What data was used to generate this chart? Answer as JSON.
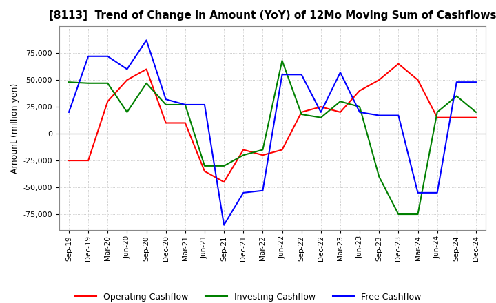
{
  "title": "[8113]  Trend of Change in Amount (YoY) of 12Mo Moving Sum of Cashflows",
  "ylabel": "Amount (million yen)",
  "x_labels": [
    "Sep-19",
    "Dec-19",
    "Mar-20",
    "Jun-20",
    "Sep-20",
    "Dec-20",
    "Mar-21",
    "Jun-21",
    "Sep-21",
    "Dec-21",
    "Mar-22",
    "Jun-22",
    "Sep-22",
    "Dec-22",
    "Mar-23",
    "Jun-23",
    "Sep-23",
    "Dec-23",
    "Mar-24",
    "Jun-24",
    "Sep-24",
    "Dec-24"
  ],
  "operating": [
    -25000,
    -25000,
    30000,
    50000,
    60000,
    10000,
    10000,
    -35000,
    -45000,
    -15000,
    -20000,
    -15000,
    20000,
    25000,
    20000,
    40000,
    50000,
    65000,
    50000,
    15000,
    15000,
    15000
  ],
  "investing": [
    48000,
    47000,
    47000,
    20000,
    47000,
    27000,
    27000,
    -30000,
    -30000,
    -20000,
    -15000,
    68000,
    18000,
    15000,
    30000,
    25000,
    -40000,
    -75000,
    -75000,
    20000,
    35000,
    20000
  ],
  "free": [
    20000,
    72000,
    72000,
    60000,
    87000,
    32000,
    27000,
    27000,
    -85000,
    -55000,
    -53000,
    55000,
    55000,
    20000,
    57000,
    20000,
    17000,
    17000,
    -55000,
    -55000,
    48000,
    48000
  ],
  "ylim": [
    -90000,
    100000
  ],
  "yticks": [
    -75000,
    -50000,
    -25000,
    0,
    25000,
    50000,
    75000
  ],
  "operating_color": "#FF0000",
  "investing_color": "#008000",
  "free_color": "#0000FF",
  "background_color": "#FFFFFF",
  "grid_color": "#BBBBBB"
}
